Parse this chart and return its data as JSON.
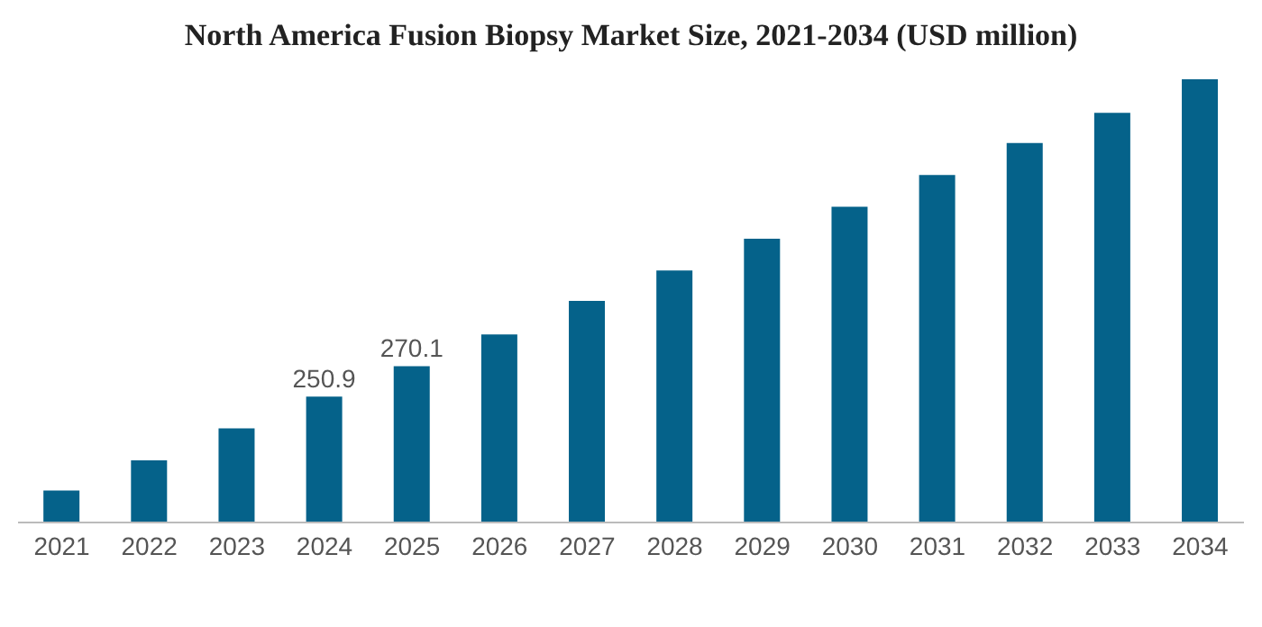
{
  "chart_data": {
    "type": "bar",
    "title": "North America Fusion Biopsy Market Size, 2021-2034 (USD million)",
    "categories": [
      "2021",
      "2022",
      "2023",
      "2024",
      "2025",
      "2026",
      "2027",
      "2028",
      "2029",
      "2030",
      "2031",
      "2032",
      "2033",
      "2034"
    ],
    "values": [
      192,
      211,
      231,
      250.9,
      270.1,
      290,
      311,
      330,
      350,
      370,
      390,
      410,
      429,
      450
    ],
    "value_labels": [
      null,
      null,
      null,
      "250.9",
      "270.1",
      null,
      null,
      null,
      null,
      null,
      null,
      null,
      null,
      null
    ],
    "ylim": [
      172,
      450
    ],
    "color": "#05628a"
  }
}
